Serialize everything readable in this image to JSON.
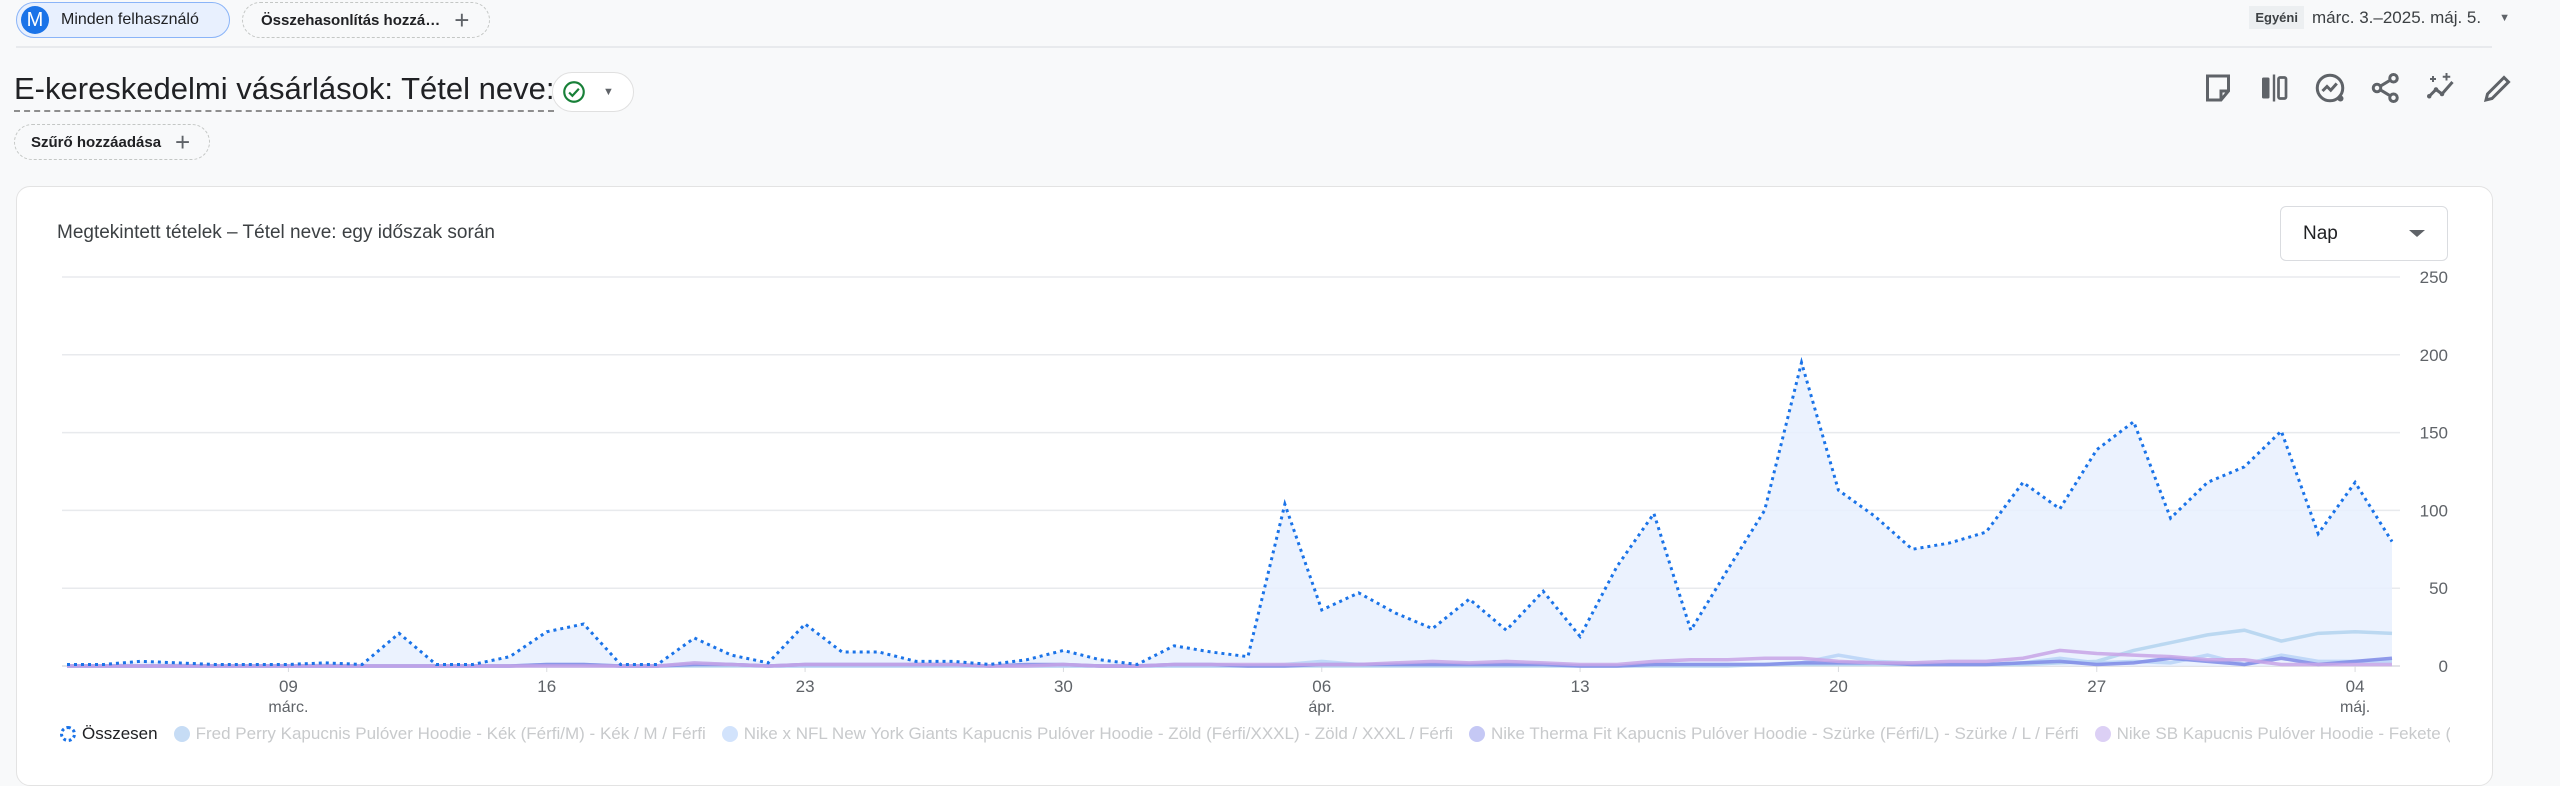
{
  "header": {
    "segment_chip": {
      "avatar": "M",
      "label": "Minden felhasználó"
    },
    "compare_chip": {
      "label": "Összehasonlítás hozzá…",
      "icon": "plus-icon"
    },
    "date_range": {
      "badge": "Egyéni",
      "label": "márc. 3.–2025. máj. 5.",
      "icon": "caret-down-icon"
    }
  },
  "report": {
    "title": "E-kereskedelmi vásárlások: Tétel neve:",
    "status_icon": "check-circle-icon",
    "filter_chip": "Szűrő hozzáadása",
    "toolbar_icons": [
      "note-icon",
      "compare-columns-icon",
      "insights-icon",
      "share-icon",
      "sparkle-trend-icon",
      "edit-icon"
    ]
  },
  "card": {
    "title": "Megtekintett tételek – Tétel neve: egy időszak során",
    "granularity": "Nap"
  },
  "chart_data": {
    "type": "area",
    "x_start": "2025-03-03",
    "x_end": "2025-05-05",
    "x_ticks": [
      {
        "date": "2025-03-09",
        "label": "09",
        "sub": "márc."
      },
      {
        "date": "2025-03-16",
        "label": "16"
      },
      {
        "date": "2025-03-23",
        "label": "23"
      },
      {
        "date": "2025-03-30",
        "label": "30"
      },
      {
        "date": "2025-04-06",
        "label": "06",
        "sub": "ápr."
      },
      {
        "date": "2025-04-13",
        "label": "13"
      },
      {
        "date": "2025-04-20",
        "label": "20"
      },
      {
        "date": "2025-04-27",
        "label": "27"
      },
      {
        "date": "2025-05-04",
        "label": "04",
        "sub": "máj."
      }
    ],
    "y_ticks": [
      0,
      50,
      100,
      150,
      200,
      250
    ],
    "ylim": [
      0,
      250
    ],
    "y_axis_side": "right",
    "grid": true,
    "legend_position": "bottom",
    "series": [
      {
        "name": "Összesen",
        "color": "#1a73e8",
        "style": "dotted-area",
        "legend_color": "#1a73e8",
        "values": [
          1,
          1,
          3,
          2,
          1,
          1,
          1,
          2,
          1,
          21,
          1,
          1,
          6,
          22,
          27,
          1,
          1,
          18,
          7,
          2,
          27,
          9,
          9,
          3,
          3,
          1,
          4,
          10,
          4,
          1,
          13,
          9,
          6,
          104,
          36,
          47,
          34,
          24,
          43,
          23,
          48,
          19,
          64,
          98,
          23,
          62,
          100,
          195,
          113,
          96,
          75,
          79,
          86,
          118,
          101,
          139,
          157,
          95,
          118,
          128,
          151,
          85,
          118,
          80
        ]
      },
      {
        "name": "Fred Perry Kapucnis Pulóver Hoodie - Kék (Férfi/M) - Kék / M / Férfi",
        "color": "#b3d4ee",
        "legend_color": "#c6dcf5",
        "values": [
          0,
          0,
          0,
          0,
          0,
          0,
          0,
          0,
          0,
          0,
          0,
          0,
          0,
          0,
          0,
          0,
          0,
          0,
          0,
          0,
          0,
          0,
          0,
          0,
          0,
          0,
          0,
          0,
          0,
          0,
          0,
          0,
          0,
          0,
          0,
          0,
          0,
          0,
          0,
          0,
          0,
          0,
          0,
          0,
          0,
          0,
          1,
          1,
          1,
          1,
          1,
          1,
          1,
          1,
          2,
          3,
          10,
          15,
          20,
          23,
          16,
          21,
          22,
          21
        ]
      },
      {
        "name": "Nike x NFL New York Giants Kapucnis Pulóver Hoodie - Zöld (Férfi/XXXL) - Zöld / XXXL / Férfi",
        "color": "#b9d3f7",
        "legend_color": "#d2e3fc",
        "values": [
          0,
          0,
          0,
          0,
          0,
          0,
          0,
          0,
          0,
          0,
          0,
          0,
          0,
          1,
          1,
          0,
          0,
          2,
          1,
          0,
          0,
          0,
          0,
          0,
          0,
          0,
          0,
          0,
          0,
          0,
          0,
          0,
          0,
          1,
          3,
          1,
          1,
          1,
          1,
          1,
          1,
          0,
          0,
          1,
          1,
          1,
          1,
          2,
          7,
          3,
          2,
          1,
          1,
          2,
          5,
          2,
          3,
          2,
          7,
          1,
          7,
          3,
          3,
          3
        ]
      },
      {
        "name": "Nike Therma Fit Kapucnis Pulóver Hoodie - Szürke (Férfi/L) - Szürke / L / Férfi",
        "color": "#7f8be6",
        "legend_color": "#c5c8f5",
        "values": [
          0,
          0,
          0,
          0,
          0,
          0,
          0,
          0,
          0,
          0,
          0,
          0,
          0,
          1,
          1,
          0,
          0,
          1,
          1,
          0,
          1,
          1,
          1,
          1,
          1,
          0,
          1,
          1,
          0,
          0,
          1,
          1,
          0,
          0,
          1,
          1,
          1,
          1,
          1,
          1,
          1,
          0,
          0,
          1,
          1,
          1,
          1,
          2,
          2,
          2,
          1,
          1,
          1,
          2,
          3,
          1,
          2,
          5,
          3,
          1,
          5,
          1,
          3,
          5
        ]
      },
      {
        "name": "Nike SB Kapucnis Pulóver Hoodie - Fekete (Férfi/XL)",
        "color": "#c8a5e6",
        "legend_color": "#dcd0f5",
        "values": [
          0,
          0,
          0,
          0,
          0,
          0,
          0,
          0,
          0,
          0,
          0,
          0,
          0,
          0,
          0,
          0,
          0,
          2,
          1,
          0,
          1,
          1,
          1,
          1,
          1,
          0,
          0,
          1,
          0,
          0,
          1,
          1,
          1,
          1,
          1,
          1,
          2,
          3,
          2,
          3,
          2,
          1,
          1,
          3,
          4,
          4,
          5,
          5,
          3,
          2,
          2,
          3,
          3,
          5,
          10,
          8,
          7,
          6,
          4,
          4,
          1,
          1,
          1,
          1
        ]
      }
    ]
  }
}
